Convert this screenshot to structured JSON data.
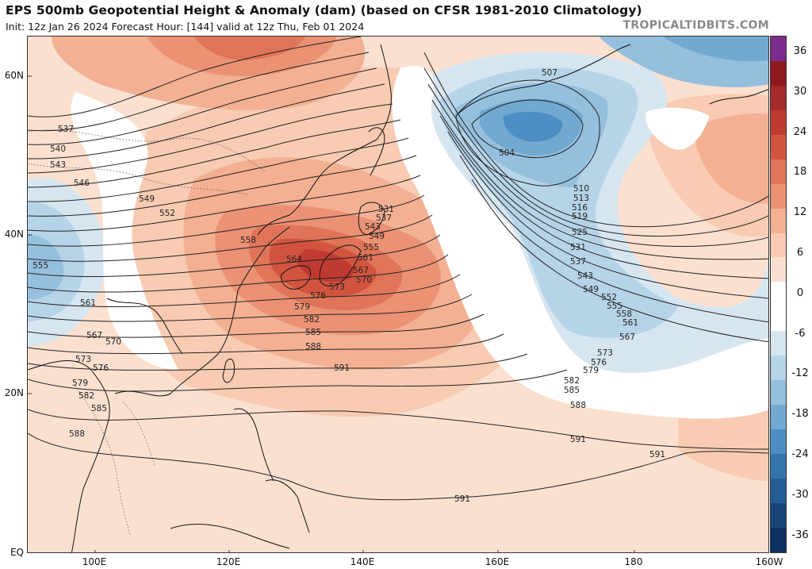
{
  "header": {
    "title": "EPS 500mb Geopotential Height & Anomaly (dam) (based on CFSR 1981-2010 Climatology)",
    "subtitle": "Init: 12z Jan 26 2024   Forecast Hour: [144]   valid at 12z Thu, Feb 01 2024",
    "credit": "TROPICALTIDBITS.COM"
  },
  "axes": {
    "lat_labels": [
      "60N",
      "40N",
      "20N",
      "EQ"
    ],
    "lon_labels": [
      "100E",
      "120E",
      "140E",
      "160E",
      "180",
      "160W"
    ]
  },
  "colorbar": {
    "ticks": [
      "36",
      "30",
      "24",
      "18",
      "12",
      "6",
      "0",
      "-6",
      "-12",
      "-18",
      "-24",
      "-30",
      "-36"
    ],
    "colors": [
      "#7b2d8e",
      "#8e1a1f",
      "#a52a2a",
      "#bf3b32",
      "#d2543f",
      "#e07458",
      "#eb9274",
      "#f3b093",
      "#f8cbb2",
      "#fbe0d0",
      "#ffffff",
      "#ffffff",
      "#d6e6f1",
      "#b6d4e8",
      "#94c0dd",
      "#72a9d1",
      "#4d8fc4",
      "#3374ad",
      "#245c94",
      "#17457a",
      "#0e3060"
    ]
  },
  "contour_labels": {
    "west": [
      "537",
      "540",
      "543",
      "546",
      "549",
      "552",
      "555",
      "558",
      "561",
      "564",
      "567",
      "570",
      "573",
      "576",
      "579",
      "582",
      "585",
      "588"
    ],
    "japan": [
      "531",
      "537",
      "543",
      "549",
      "555",
      "561",
      "567",
      "570",
      "573",
      "576",
      "579",
      "582",
      "585",
      "588",
      "591"
    ],
    "east": [
      "507",
      "504",
      "510",
      "513",
      "516",
      "519",
      "525",
      "531",
      "537",
      "543",
      "549",
      "552",
      "555",
      "558",
      "561",
      "567",
      "573",
      "576",
      "579",
      "582",
      "585",
      "588",
      "591",
      "591",
      "591"
    ]
  }
}
